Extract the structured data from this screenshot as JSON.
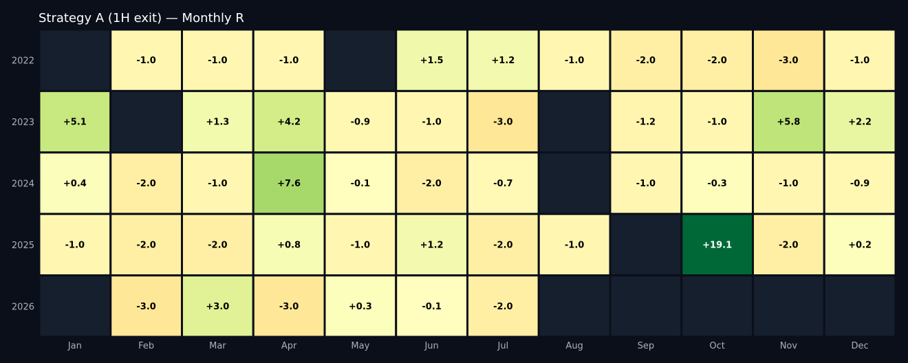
{
  "chart_data": {
    "type": "heatmap",
    "title": "Strategy A (1H exit) — Monthly R",
    "xlabel": "",
    "ylabel": "",
    "x_categories": [
      "Jan",
      "Feb",
      "Mar",
      "Apr",
      "May",
      "Jun",
      "Jul",
      "Aug",
      "Sep",
      "Oct",
      "Nov",
      "Dec"
    ],
    "y_categories": [
      "2022",
      "2023",
      "2024",
      "2025",
      "2026"
    ],
    "values": [
      [
        null,
        -1.0,
        -1.0,
        -1.0,
        null,
        1.5,
        1.2,
        -1.0,
        -2.0,
        -2.0,
        -3.0,
        -1.0
      ],
      [
        5.1,
        null,
        1.3,
        4.2,
        -0.9,
        -1.0,
        -3.0,
        null,
        -1.2,
        -1.0,
        5.8,
        2.2
      ],
      [
        0.4,
        -2.0,
        -1.0,
        7.6,
        -0.1,
        -2.0,
        -0.7,
        null,
        -1.0,
        -0.3,
        -1.0,
        -0.9
      ],
      [
        -1.0,
        -2.0,
        -2.0,
        0.8,
        -1.0,
        1.2,
        -2.0,
        -1.0,
        null,
        19.1,
        -2.0,
        0.2
      ],
      [
        null,
        -3.0,
        3.0,
        -3.0,
        0.3,
        -0.1,
        -2.0,
        null,
        null,
        null,
        null,
        null
      ]
    ],
    "colorscale": "RdYlGn",
    "color_range": [
      -19.1,
      19.1
    ],
    "empty_color": "#161f2e",
    "grid_color": "#0b0f19"
  },
  "colors": {
    "background": "#0b0f19",
    "title": "#ffffff",
    "tick": "#a9b0bd"
  }
}
